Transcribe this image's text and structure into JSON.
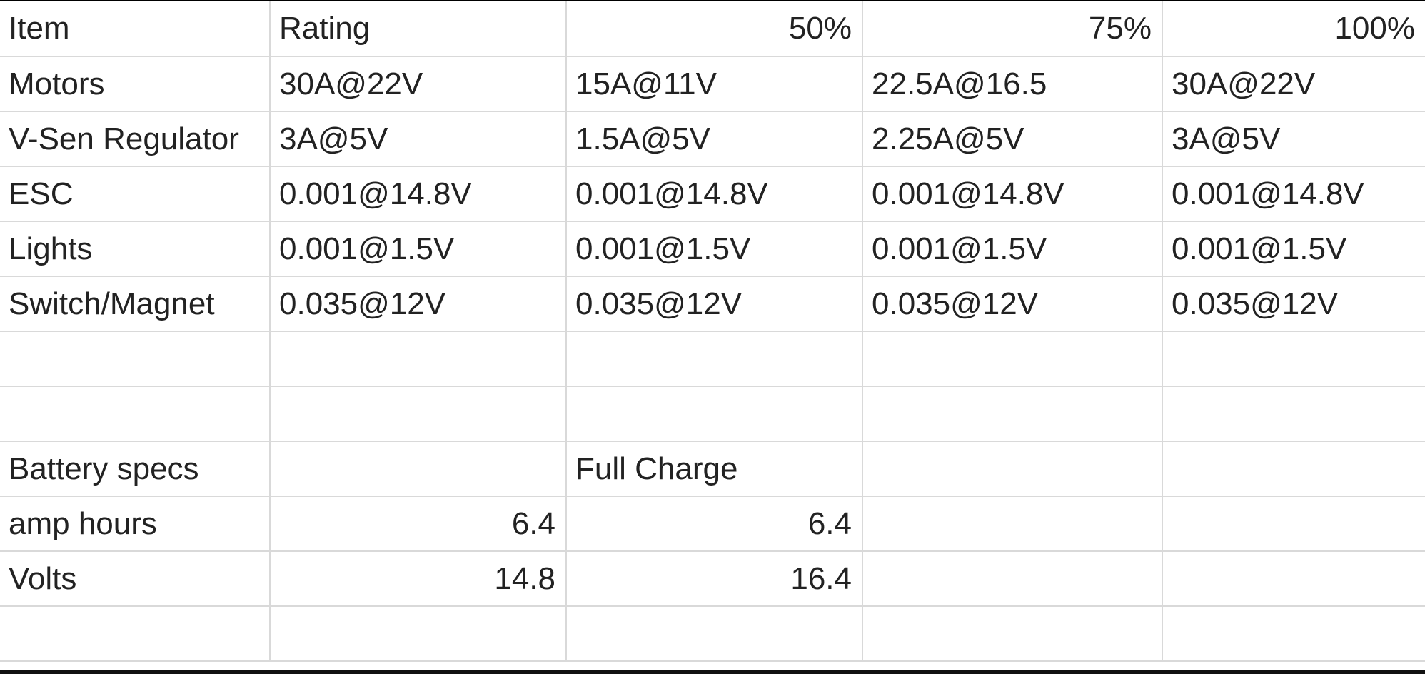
{
  "sheet": {
    "header": {
      "item": "Item",
      "rating": "Rating",
      "p50": "50%",
      "p75": "75%",
      "p100": "100%"
    },
    "rows": [
      {
        "item": "Motors",
        "rating": "30A@22V",
        "p50": "15A@11V",
        "p75": "22.5A@16.5",
        "p100": "30A@22V"
      },
      {
        "item": "V-Sen Regulator",
        "rating": "3A@5V",
        "p50": "1.5A@5V",
        "p75": "2.25A@5V",
        "p100": "3A@5V"
      },
      {
        "item": "ESC",
        "rating": "0.001@14.8V",
        "p50": "0.001@14.8V",
        "p75": "0.001@14.8V",
        "p100": "0.001@14.8V"
      },
      {
        "item": "Lights",
        "rating": "0.001@1.5V",
        "p50": "0.001@1.5V",
        "p75": "0.001@1.5V",
        "p100": "0.001@1.5V"
      },
      {
        "item": "Switch/Magnet",
        "rating": "0.035@12V",
        "p50": "0.035@12V",
        "p75": "0.035@12V",
        "p100": "0.035@12V"
      }
    ],
    "battery": {
      "title": "Battery specs",
      "full_charge_label": "Full Charge",
      "rows": [
        {
          "label": "amp hours",
          "rating": "6.4",
          "full_charge": "6.4"
        },
        {
          "label": "Volts",
          "rating": "14.8",
          "full_charge": "16.4"
        }
      ]
    }
  }
}
